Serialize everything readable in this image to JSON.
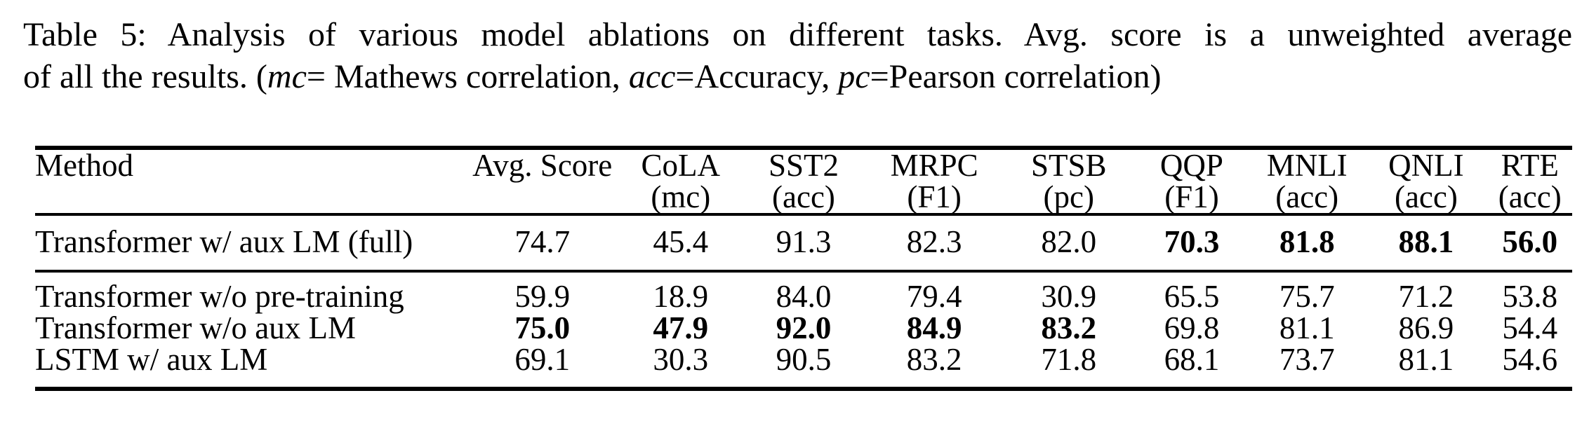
{
  "caption": {
    "line1": "Table 5: Analysis of various model ablations on different tasks. Avg. score is a unweighted average",
    "line2_part1": "of all the results. (",
    "mc_term": "mc",
    "mc_def": "= Mathews correlation, ",
    "acc_term": "acc",
    "acc_def": "=Accuracy, ",
    "pc_term": "pc",
    "pc_def": "=Pearson correlation)"
  },
  "table": {
    "header": {
      "method": "Method",
      "cols": [
        {
          "name": "Avg. Score",
          "metric": ""
        },
        {
          "name": "CoLA",
          "metric": "(mc)"
        },
        {
          "name": "SST2",
          "metric": "(acc)"
        },
        {
          "name": "MRPC",
          "metric": "(F1)"
        },
        {
          "name": "STSB",
          "metric": "(pc)"
        },
        {
          "name": "QQP",
          "metric": "(F1)"
        },
        {
          "name": "MNLI",
          "metric": "(acc)"
        },
        {
          "name": "QNLI",
          "metric": "(acc)"
        },
        {
          "name": "RTE",
          "metric": "(acc)"
        }
      ]
    },
    "groups": [
      {
        "rows": [
          {
            "method": "Transformer w/ aux LM (full)",
            "values": [
              "74.7",
              "45.4",
              "91.3",
              "82.3",
              "82.0",
              "70.3",
              "81.8",
              "88.1",
              "56.0"
            ],
            "bold": [
              false,
              false,
              false,
              false,
              false,
              true,
              true,
              true,
              true
            ]
          }
        ]
      },
      {
        "rows": [
          {
            "method": "Transformer w/o pre-training",
            "values": [
              "59.9",
              "18.9",
              "84.0",
              "79.4",
              "30.9",
              "65.5",
              "75.7",
              "71.2",
              "53.8"
            ],
            "bold": [
              false,
              false,
              false,
              false,
              false,
              false,
              false,
              false,
              false
            ]
          },
          {
            "method": "Transformer w/o aux LM",
            "values": [
              "75.0",
              "47.9",
              "92.0",
              "84.9",
              "83.2",
              "69.8",
              "81.1",
              "86.9",
              "54.4"
            ],
            "bold": [
              true,
              true,
              true,
              true,
              true,
              false,
              false,
              false,
              false
            ]
          },
          {
            "method": "LSTM w/ aux LM",
            "values": [
              "69.1",
              "30.3",
              "90.5",
              "83.2",
              "71.8",
              "68.1",
              "73.7",
              "81.1",
              "54.6"
            ],
            "bold": [
              false,
              false,
              false,
              false,
              false,
              false,
              false,
              false,
              false
            ]
          }
        ]
      }
    ]
  },
  "colors": {
    "text": "#000000",
    "background": "#ffffff",
    "rule": "#000000"
  }
}
